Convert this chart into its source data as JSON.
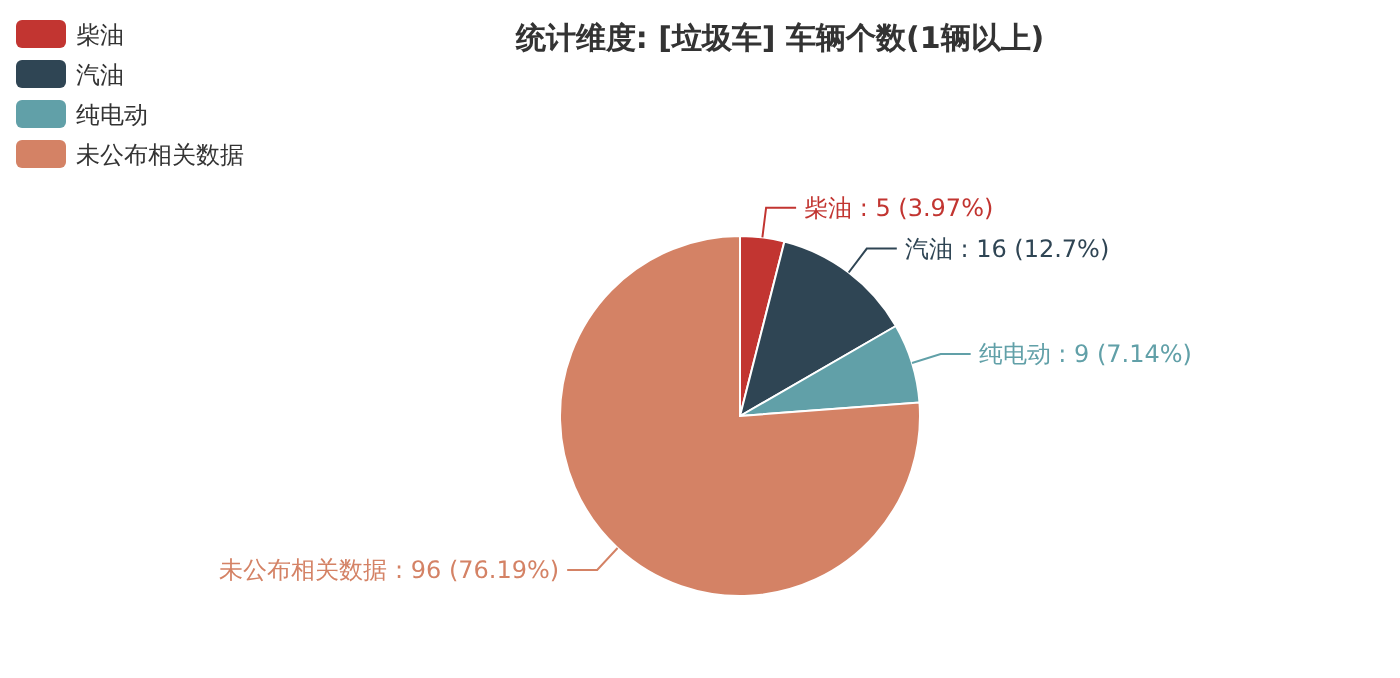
{
  "chart_data": {
    "type": "pie",
    "title": "统计维度: [垃圾车] 车辆个数(1辆以上)",
    "categories": [
      "柴油",
      "汽油",
      "纯电动",
      "未公布相关数据"
    ],
    "values": [
      5,
      16,
      9,
      96
    ],
    "colors": [
      "#c23531",
      "#2f4554",
      "#61a0a8",
      "#d48265"
    ],
    "value_labels": [
      "柴油 : 5 (3.97%)",
      "汽油 : 16 (12.7%)",
      "纯电动 : 9 (7.14%)",
      "未公布相关数据 : 96 (76.19%)"
    ],
    "legend": "top left"
  }
}
